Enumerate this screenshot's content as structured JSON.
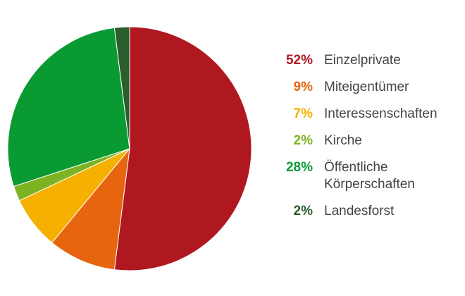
{
  "chart_data": {
    "type": "pie",
    "title": "",
    "start_angle_deg": 0,
    "direction": "clockwise",
    "slices": [
      {
        "label": "Einzelprivate",
        "display_value": "52%",
        "value": 52,
        "color": "#b01820"
      },
      {
        "label": "Miteigentümer",
        "display_value": "9%",
        "value": 9,
        "color": "#e8650f"
      },
      {
        "label": "Interessenschaften",
        "display_value": "7%",
        "value": 7,
        "color": "#f5b000"
      },
      {
        "label": "Kirche",
        "display_value": "2%",
        "value": 2,
        "color": "#7db322"
      },
      {
        "label": "Öffentliche Körperschaften",
        "display_value": "28%",
        "value": 28,
        "color": "#0a9a32"
      },
      {
        "label": "Landesforst",
        "display_value": "2%",
        "value": 2,
        "color": "#2c5d2c"
      }
    ],
    "legend_position": "right"
  }
}
